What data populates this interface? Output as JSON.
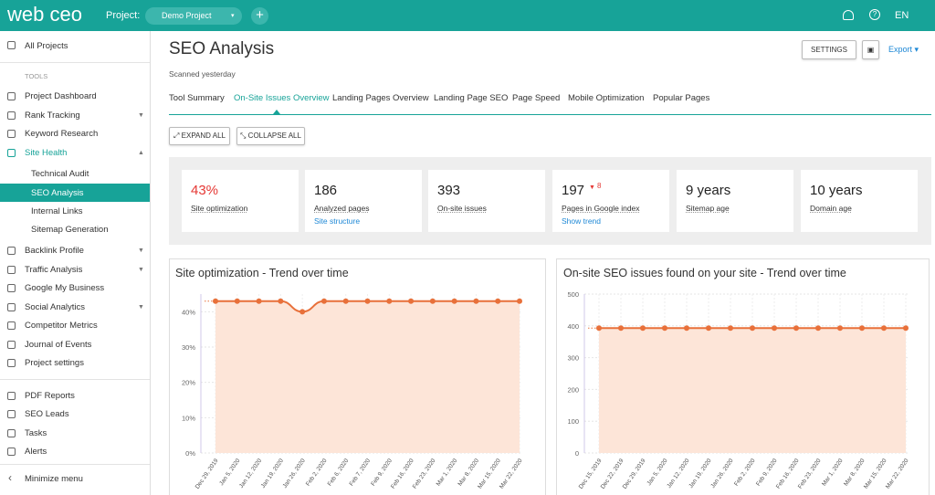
{
  "header": {
    "logo": "web ceo",
    "project_label": "Project:",
    "project_name": "Demo Project",
    "language": "EN"
  },
  "sidebar": {
    "all_projects": "All Projects",
    "tools_heading": "TOOLS",
    "tools": [
      "Project Dashboard",
      "Rank Tracking",
      "Keyword Research",
      "Site Health",
      "Technical Audit",
      "SEO Analysis",
      "Internal Links",
      "Sitemap Generation",
      "Backlink Profile",
      "Traffic Analysis",
      "Google My Business",
      "Social Analytics",
      "Competitor Metrics",
      "Journal of Events",
      "Project settings"
    ],
    "reports": [
      "PDF Reports",
      "SEO Leads",
      "Tasks",
      "Alerts"
    ],
    "minimize": "Minimize menu"
  },
  "page": {
    "title": "SEO Analysis",
    "subtitle": "Scanned yesterday",
    "settings_button": "SETTINGS",
    "export_button": "Export",
    "tabs": [
      "Tool Summary",
      "On-Site Issues Overview",
      "Landing Pages Overview",
      "Landing Page SEO",
      "Page Speed",
      "Mobile Optimization",
      "Popular Pages"
    ],
    "expand_all": "EXPAND ALL",
    "collapse_all": "COLLAPSE ALL",
    "cards": [
      {
        "value": "43%",
        "label": "Site optimization"
      },
      {
        "value": "186",
        "label": "Analyzed pages",
        "link": "Site structure"
      },
      {
        "value": "393",
        "label": "On-site issues"
      },
      {
        "value": "197",
        "change": "8",
        "label": "Pages in Google index",
        "link": "Show trend"
      },
      {
        "value": "9 years",
        "label": "Sitemap age"
      },
      {
        "value": "10 years",
        "label": "Domain age"
      }
    ]
  },
  "chart_data": [
    {
      "type": "line",
      "title": "Site optimization - Trend over time",
      "categories": [
        "Dec 29, 2019",
        "Jan 5, 2020",
        "Jan 12, 2020",
        "Jan 19, 2020",
        "Jan 26, 2020",
        "Feb 2, 2020",
        "Feb 6, 2020",
        "Feb 7, 2020",
        "Feb 9, 2020",
        "Feb 16, 2020",
        "Feb 23, 2020",
        "Mar 1, 2020",
        "Mar 8, 2020",
        "Mar 15, 2020",
        "Mar 22, 2020"
      ],
      "values": [
        43,
        43,
        43,
        43,
        40,
        43,
        43,
        43,
        43,
        43,
        43,
        43,
        43,
        43,
        43
      ],
      "color": "#e8703a",
      "ylim": [
        0,
        45
      ],
      "yticks": [
        {
          "value": 0,
          "label": "0%"
        },
        {
          "value": 10,
          "label": "10%"
        },
        {
          "value": 20,
          "label": "20%"
        },
        {
          "value": 30,
          "label": "30%"
        },
        {
          "value": 40,
          "label": "40%"
        }
      ],
      "grid": true
    },
    {
      "type": "line",
      "title": "On-site SEO issues found on your site - Trend over time",
      "categories": [
        "Dec 15, 2019",
        "Dec 22, 2019",
        "Dec 29, 2019",
        "Jan 5, 2020",
        "Jan 12, 2020",
        "Jan 19, 2020",
        "Jan 26, 2020",
        "Feb 2, 2020",
        "Feb 9, 2020",
        "Feb 16, 2020",
        "Feb 23, 2020",
        "Mar 1, 2020",
        "Mar 8, 2020",
        "Mar 15, 2020",
        "Mar 22, 2020"
      ],
      "values": [
        393,
        393,
        393,
        393,
        393,
        393,
        393,
        393,
        393,
        393,
        393,
        393,
        393,
        393,
        393
      ],
      "color": "#e8703a",
      "ylim": [
        0,
        500
      ],
      "yticks": [
        0,
        100,
        200,
        300,
        400,
        500
      ],
      "grid": true
    }
  ]
}
